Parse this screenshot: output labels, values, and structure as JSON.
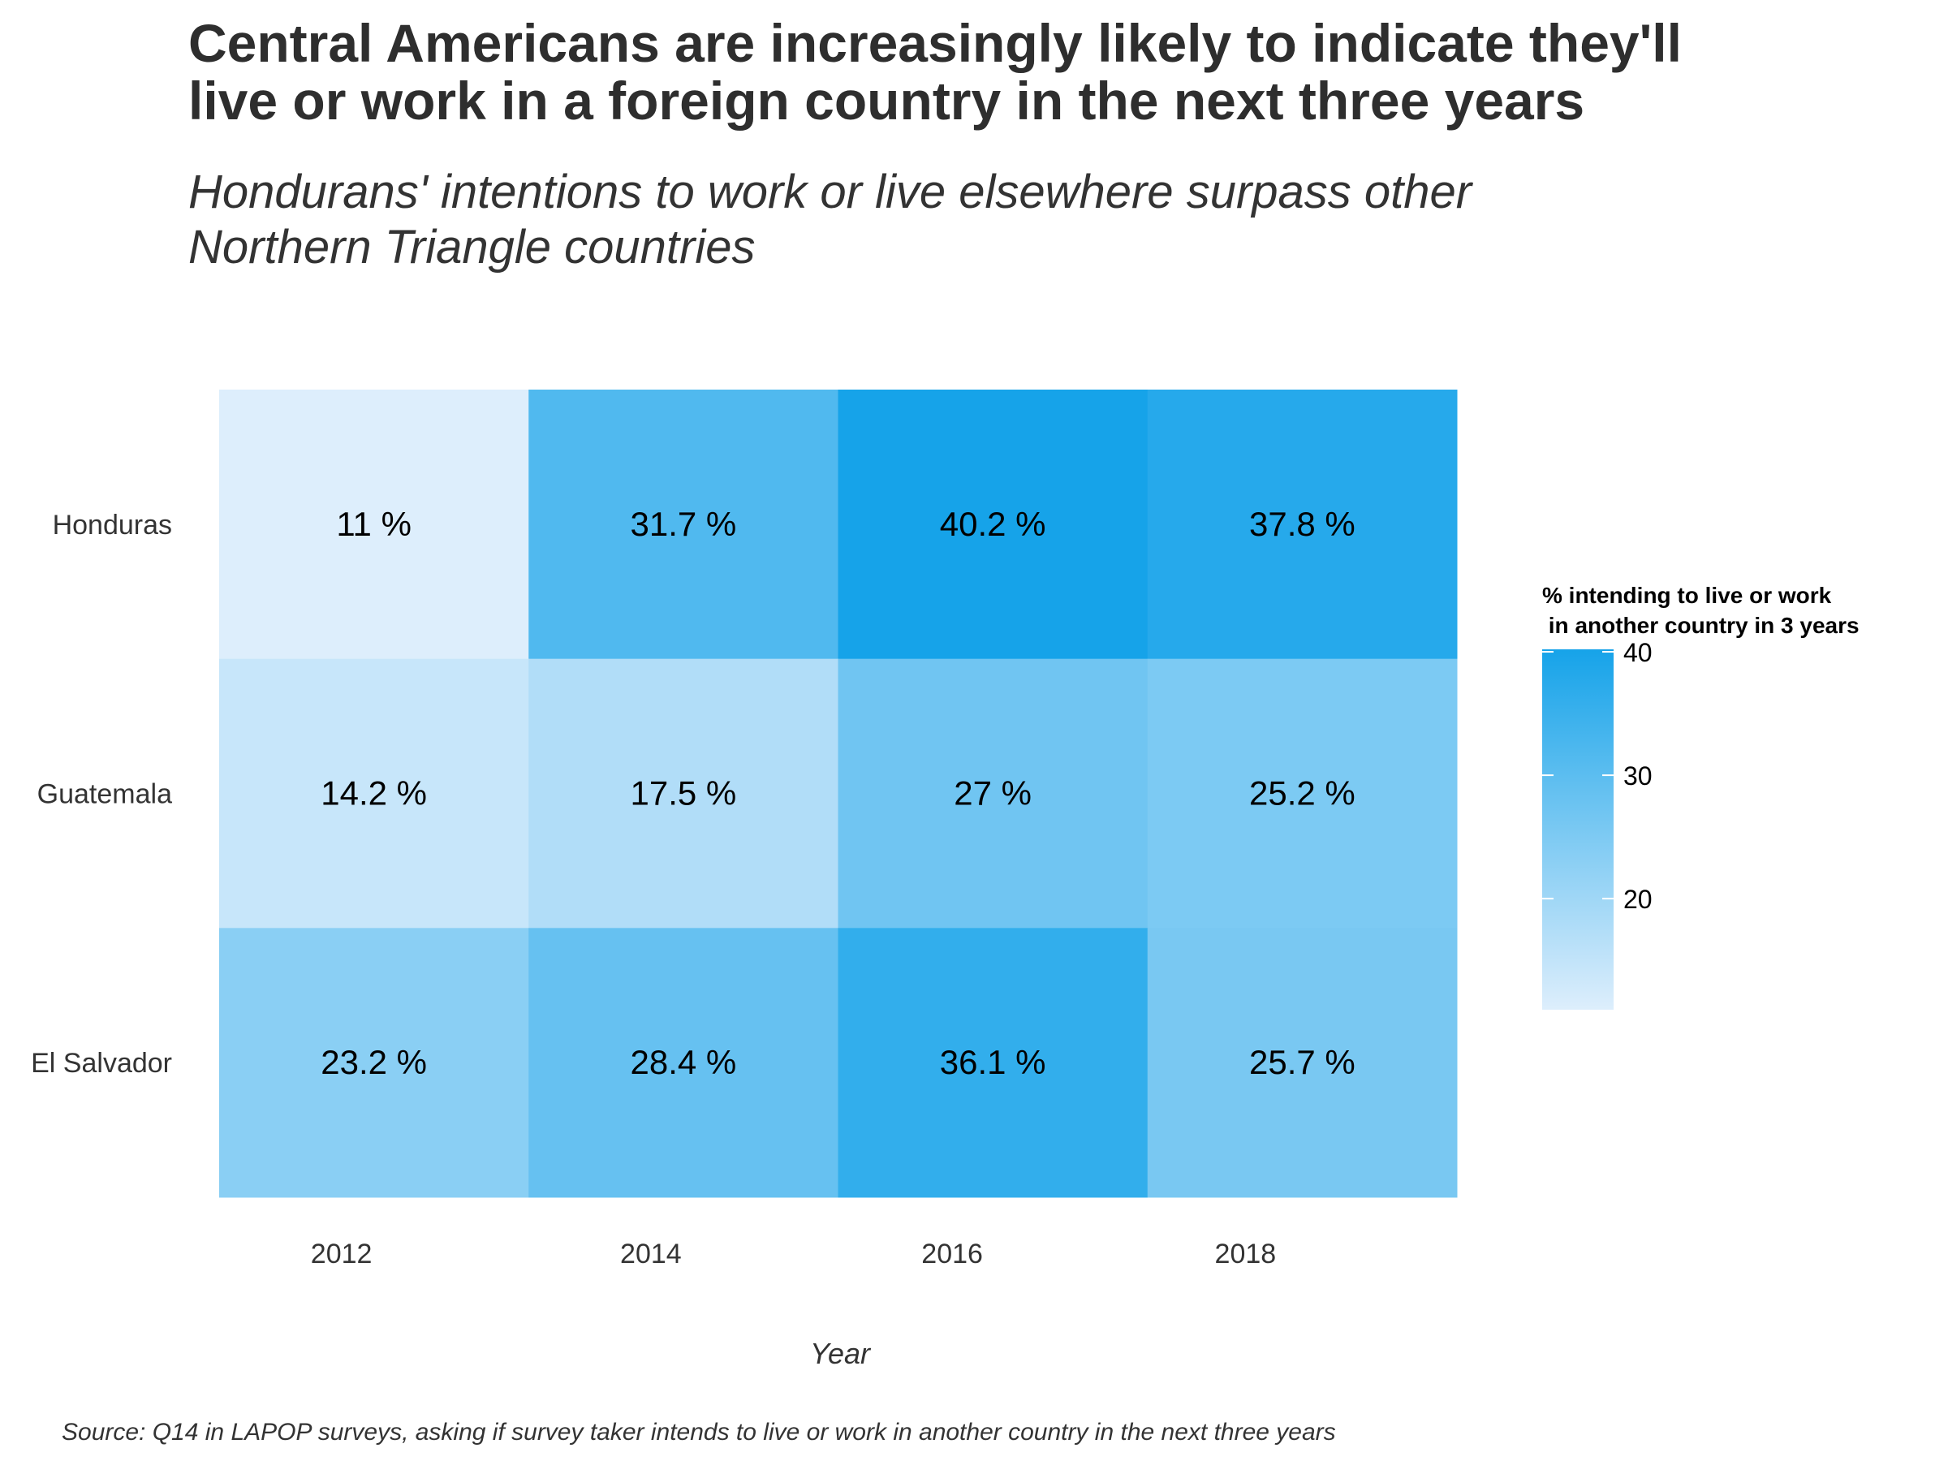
{
  "title": "Central Americans are increasingly likely to indicate they'll\n live or work in a foreign country in the next three years",
  "subtitle": "Hondurans' intentions to work or live elsewhere surpass other\n Northern Triangle countries",
  "caption": "Source: Q14 in LAPOP surveys, asking if survey taker intends to live or work in another country in the next three years",
  "chart_data": {
    "type": "heatmap",
    "x": [
      "2012",
      "2014",
      "2016",
      "2018"
    ],
    "y": [
      "Honduras",
      "Guatemala",
      "El Salvador"
    ],
    "values": [
      [
        11,
        31.7,
        40.2,
        37.8
      ],
      [
        14.2,
        17.5,
        27,
        25.2
      ],
      [
        23.2,
        28.4,
        36.1,
        25.7
      ]
    ],
    "cell_labels": [
      [
        "11 %",
        "31.7 %",
        "40.2 %",
        "37.8 %"
      ],
      [
        "14.2 %",
        "17.5 %",
        "27 %",
        "25.2 %"
      ],
      [
        "23.2 %",
        "28.4 %",
        "36.1 %",
        "25.7 %"
      ]
    ],
    "xlabel": "Year",
    "ylabel": "",
    "legend": {
      "title_line1": "% intending to live or work",
      "title_line2": " in another country in 3 years",
      "ticks": [
        20,
        30,
        40
      ],
      "tick_labels": [
        "20",
        "30",
        "40"
      ],
      "range": [
        11,
        40.2
      ],
      "placement": "right"
    },
    "color_low": "#ddeefc",
    "color_high": "#16a3e9",
    "grid": false
  }
}
